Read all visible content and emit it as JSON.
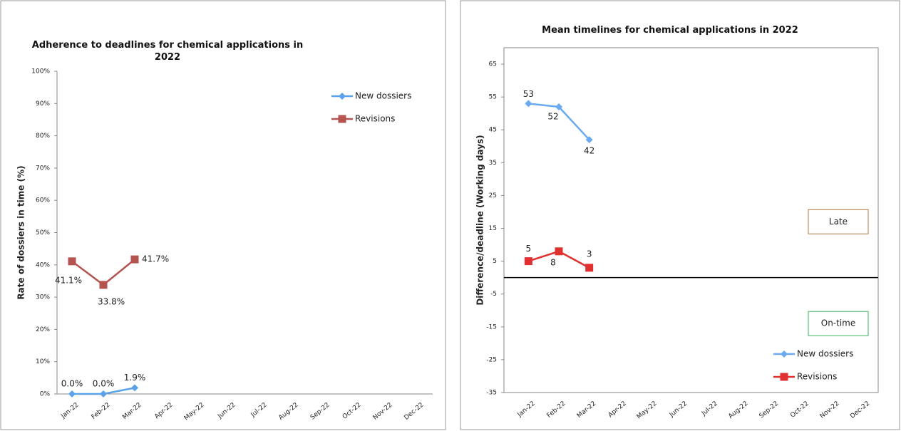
{
  "chart_data": [
    {
      "type": "line",
      "title": "Adherence to deadlines for chemical applications in 2022",
      "y_label": "Rate of dossiers in time (%)",
      "categories": [
        "Jan-22",
        "Feb-22",
        "Mar-22",
        "Apr-22",
        "May-22",
        "Jun-22",
        "Jul-22",
        "Aug-22",
        "Sep-22",
        "Oct-22",
        "Nov-22",
        "Dec-22"
      ],
      "series": [
        {
          "name": "New dossiers",
          "color": "#5ba3e8",
          "marker": "diamond",
          "values": [
            0,
            0,
            1.9,
            null,
            null,
            null,
            null,
            null,
            null,
            null,
            null,
            null
          ],
          "value_labels": [
            "0.0%",
            "0.0%",
            "1.9%",
            null,
            null,
            null,
            null,
            null,
            null,
            null,
            null,
            null
          ]
        },
        {
          "name": "Revisions",
          "color": "#b5534f",
          "marker": "square",
          "values": [
            41.1,
            33.8,
            41.7,
            null,
            null,
            null,
            null,
            null,
            null,
            null,
            null,
            null
          ],
          "value_labels": [
            "41.1%",
            "33.8%",
            "41.7%",
            null,
            null,
            null,
            null,
            null,
            null,
            null,
            null,
            null
          ]
        }
      ],
      "ylim": [
        0,
        100
      ],
      "yticks": [
        {
          "value": 0,
          "label": "0%"
        },
        {
          "value": 10,
          "label": "10%"
        },
        {
          "value": 20,
          "label": "20%"
        },
        {
          "value": 30,
          "label": "30%"
        },
        {
          "value": 40,
          "label": "40%"
        },
        {
          "value": 50,
          "label": "50%"
        },
        {
          "value": 60,
          "label": "60%"
        },
        {
          "value": 70,
          "label": "70%"
        },
        {
          "value": 80,
          "label": "80%"
        },
        {
          "value": 90,
          "label": "90%"
        },
        {
          "value": 100,
          "label": "100%"
        }
      ],
      "grid": false,
      "legend": "top-right"
    },
    {
      "type": "line",
      "title": "Mean timelines for chemical applications in 2022",
      "y_label": "Difference/deadline (Working days)",
      "categories": [
        "Jan-22",
        "Feb-22",
        "Mar-22",
        "Apr-22",
        "May-22",
        "Jun-22",
        "Jul-22",
        "Aug-22",
        "Sep-22",
        "Oct-22",
        "Nov-22",
        "Dec-22"
      ],
      "series": [
        {
          "name": "New dossiers",
          "color": "#6aaaf0",
          "marker": "diamond",
          "values": [
            53,
            52,
            42,
            null,
            null,
            null,
            null,
            null,
            null,
            null,
            null,
            null
          ]
        },
        {
          "name": "Revisions",
          "color": "#e03030",
          "marker": "square",
          "values": [
            5,
            8,
            3,
            null,
            null,
            null,
            null,
            null,
            null,
            null,
            null,
            null
          ]
        }
      ],
      "ylim": [
        -35,
        70
      ],
      "yticks": [
        -35,
        -25,
        -15,
        -5,
        5,
        15,
        25,
        35,
        45,
        55,
        65
      ],
      "annotations": [
        {
          "text": "Late",
          "y": 17,
          "color": "#b07840"
        },
        {
          "text": "On-time",
          "y": -14,
          "color": "#3cb060"
        }
      ],
      "grid": false,
      "legend": "bottom-right"
    }
  ]
}
